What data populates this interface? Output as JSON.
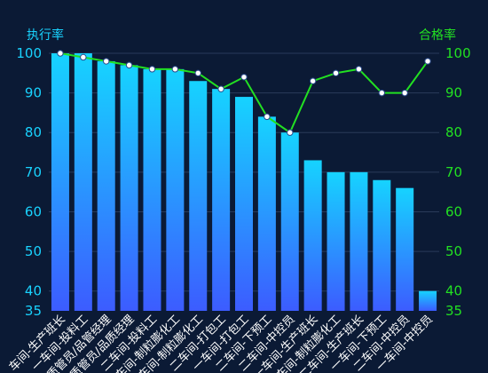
{
  "chart_data": {
    "type": "bar",
    "ylabel_left": "执行率",
    "ylabel_right": "合格率",
    "ylim": [
      35,
      100
    ],
    "yticks": [
      100,
      90,
      80,
      70,
      60,
      50,
      40,
      35
    ],
    "categories": [
      "车间-生产班长",
      "一车间-投料工",
      "质管员/品管经理",
      "质管员/品质经理",
      "二车间-投料工",
      "一车间-制粒膨化工",
      "二车间-制粒膨化工",
      "二车间-打包工",
      "一车间-打包工",
      "二车间-下预工",
      "二车间-中控员",
      "一车间-生产班长",
      "一车间-制粒膨化工",
      "二车间-生产班长",
      "一车间-下预工",
      "二车间-中控员",
      "一车间-中控员"
    ],
    "series": [
      {
        "name": "执行率",
        "type": "bar",
        "values": [
          100,
          100,
          98,
          97,
          96,
          96,
          93,
          91,
          89,
          84,
          80,
          73,
          70,
          70,
          68,
          66,
          40
        ],
        "gradient_top": "#16d3ff",
        "gradient_bottom": "#3c5cff"
      },
      {
        "name": "合格率",
        "type": "line",
        "values": [
          100,
          99,
          98,
          97,
          96,
          96,
          95,
          91,
          94,
          84,
          80,
          93,
          95,
          96,
          90,
          90,
          98
        ],
        "color": "#22e022"
      }
    ],
    "colors": {
      "background": "#0b1a35",
      "left_axis": "#19d3ff",
      "right_axis": "#22e022",
      "grid": "#2a3a5a",
      "category_label": "#ffffff"
    }
  }
}
